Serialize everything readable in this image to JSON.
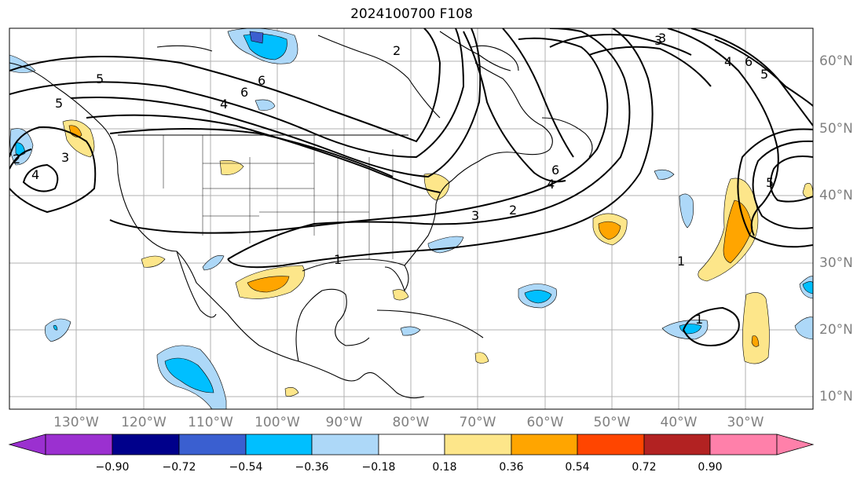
{
  "title": "2024100700 F108",
  "lat_labels": [
    "60°N",
    "50°N",
    "40°N",
    "30°N",
    "20°N",
    "10°N"
  ],
  "lon_labels": [
    "130°W",
    "120°W",
    "110°W",
    "100°W",
    "90°W",
    "80°W",
    "70°W",
    "60°W",
    "50°W",
    "40°W",
    "30°W"
  ],
  "colorbar": {
    "ticks": [
      "−0.90",
      "−0.72",
      "−0.54",
      "−0.36",
      "−0.18",
      "0.18",
      "0.36",
      "0.54",
      "0.72",
      "0.90"
    ],
    "colors": [
      "#9b30d0",
      "#00008b",
      "#3a5fd0",
      "#00bfff",
      "#add8f8",
      "#ffffff",
      "#fde68a",
      "#ffa500",
      "#ff4500",
      "#b22222",
      "#ff80aa"
    ]
  },
  "contour_labels": [
    "5",
    "6",
    "4",
    "3",
    "2",
    "1",
    "4",
    "5",
    "6",
    "3",
    "2",
    "4",
    "6",
    "3",
    "2",
    "1",
    "1",
    "3",
    "4",
    "6",
    "5",
    "5"
  ]
}
